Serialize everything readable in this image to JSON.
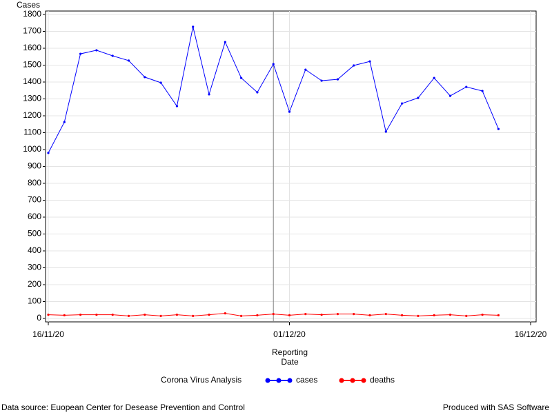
{
  "chart_data": {
    "type": "line",
    "y_label": "Cases",
    "x_label": [
      "Reporting",
      "Date"
    ],
    "legend_title": "Corona Virus Analysis",
    "footnote_left": "Data source: Euopean Center for Desease Prevention and Control",
    "footnote_right": "Produced with SAS Software",
    "x": [
      "2020-11-16",
      "2020-11-17",
      "2020-11-18",
      "2020-11-19",
      "2020-11-20",
      "2020-11-21",
      "2020-11-22",
      "2020-11-23",
      "2020-11-24",
      "2020-11-25",
      "2020-11-26",
      "2020-11-27",
      "2020-11-28",
      "2020-11-29",
      "2020-11-30",
      "2020-12-01",
      "2020-12-02",
      "2020-12-03",
      "2020-12-04",
      "2020-12-05",
      "2020-12-06",
      "2020-12-07",
      "2020-12-08",
      "2020-12-09",
      "2020-12-10",
      "2020-12-11",
      "2020-12-12",
      "2020-12-13",
      "2020-12-14"
    ],
    "series": [
      {
        "name": "cases",
        "color": "#0000ff",
        "values": [
          980,
          1163,
          1567,
          1588,
          1555,
          1527,
          1429,
          1396,
          1257,
          1727,
          1327,
          1637,
          1424,
          1339,
          1506,
          1224,
          1473,
          1408,
          1416,
          1498,
          1522,
          1106,
          1273,
          1306,
          1424,
          1318,
          1371,
          1347,
          1122
        ]
      },
      {
        "name": "deaths",
        "color": "#ff0000",
        "values": [
          22,
          19,
          22,
          22,
          22,
          15,
          22,
          15,
          22,
          15,
          22,
          30,
          15,
          19,
          26,
          19,
          26,
          22,
          26,
          26,
          19,
          26,
          19,
          15,
          19,
          22,
          15,
          22,
          19
        ]
      }
    ],
    "xlim": [
      "2020-11-16",
      "2020-12-16"
    ],
    "xticks": [
      {
        "value": "2020-11-16",
        "label": "16/11/20"
      },
      {
        "value": "2020-12-01",
        "label": "01/12/20"
      },
      {
        "value": "2020-12-16",
        "label": "16/12/20"
      }
    ],
    "ylim": [
      0,
      1800
    ],
    "yticks": [
      0,
      100,
      200,
      300,
      400,
      500,
      600,
      700,
      800,
      900,
      1000,
      1100,
      1200,
      1300,
      1400,
      1500,
      1600,
      1700,
      1800
    ],
    "reference_x": "2020-11-30",
    "grid": true
  }
}
